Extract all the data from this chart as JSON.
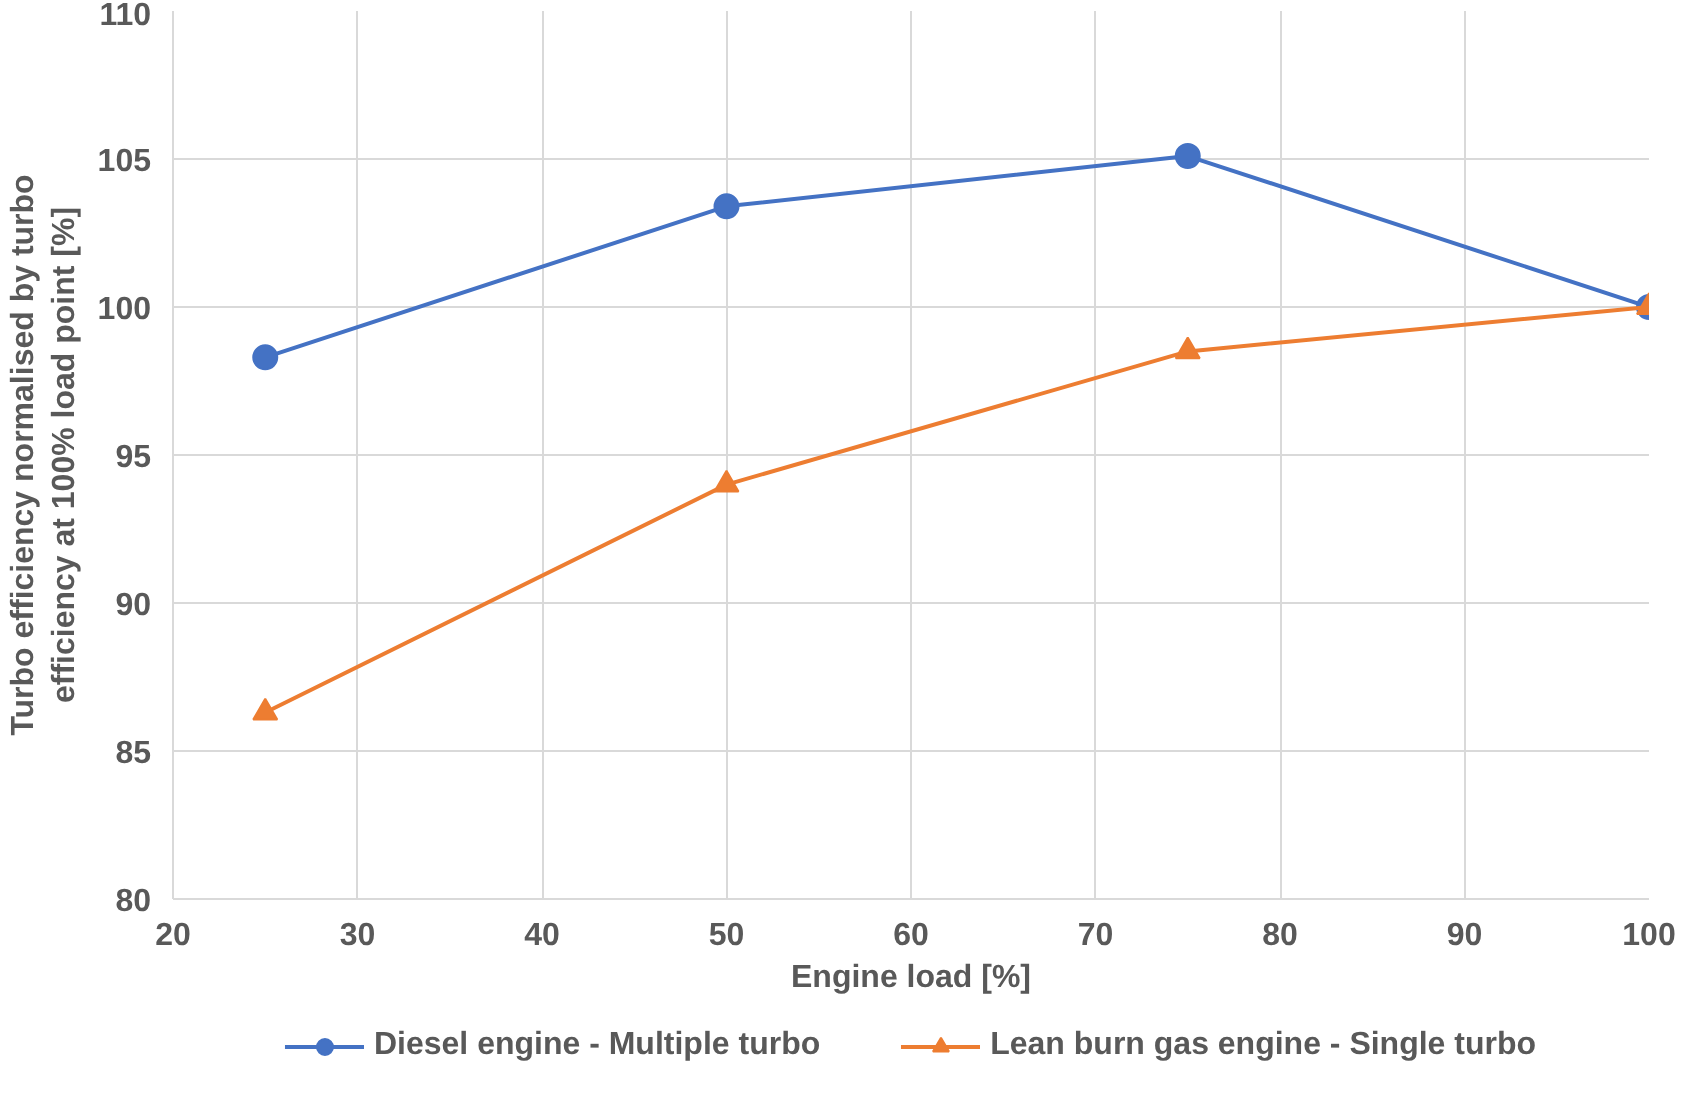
{
  "chart_data": {
    "type": "line",
    "xlabel": "Engine load [%]",
    "ylabel": "Turbo efficiency normalised by turbo efficiency at 100% load point [%]",
    "x": [
      25,
      50,
      75,
      100
    ],
    "series": [
      {
        "name": "Diesel engine - Multiple turbo",
        "color": "#4472c4",
        "marker": "circle",
        "values": [
          98.3,
          103.4,
          105.1,
          100
        ]
      },
      {
        "name": "Lean burn gas engine - Single turbo",
        "color": "#ed7d31",
        "marker": "triangle",
        "values": [
          86.3,
          94.0,
          98.5,
          100
        ]
      }
    ],
    "xlim": [
      20,
      100
    ],
    "xticks": [
      20,
      30,
      40,
      50,
      60,
      70,
      80,
      90,
      100
    ],
    "ylim": [
      80,
      110
    ],
    "yticks": [
      80,
      85,
      90,
      95,
      100,
      105,
      110
    ],
    "grid": true,
    "legend": "bottom",
    "line_style": "solid"
  }
}
